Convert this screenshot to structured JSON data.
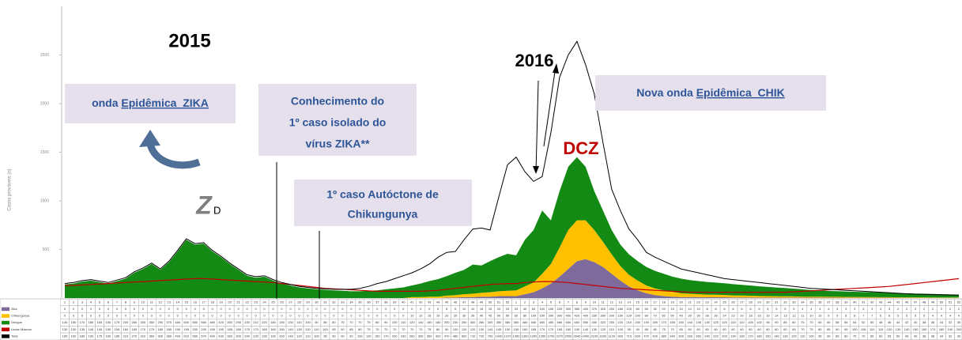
{
  "chart_data": {
    "type": "stacked_area",
    "y_label": "Casos prováveis (n)",
    "ylim": [
      0,
      3000
    ],
    "yticks": [
      500,
      1000,
      1500,
      2000,
      2500
    ],
    "categories": [
      1,
      2,
      3,
      4,
      5,
      6,
      7,
      8,
      9,
      10,
      11,
      12,
      13,
      14,
      15,
      16,
      17,
      18,
      19,
      20,
      21,
      22,
      23,
      24,
      25,
      26,
      27,
      28,
      29,
      30,
      31,
      32,
      33,
      34,
      35,
      36,
      37,
      38,
      39,
      40,
      41,
      42,
      43,
      44,
      45,
      46,
      47,
      48,
      49,
      50,
      51,
      52,
      1,
      2,
      3,
      4,
      5,
      6,
      7,
      8,
      9,
      10,
      11,
      12,
      13,
      14,
      15,
      16,
      17,
      18,
      19,
      20,
      21,
      22,
      23,
      24,
      25,
      26,
      27,
      28,
      29,
      30,
      31,
      32,
      33,
      34,
      35,
      36,
      37,
      38,
      39,
      40,
      41,
      42,
      43,
      44,
      45,
      46,
      47,
      48,
      49,
      50,
      51,
      52
    ],
    "series": [
      {
        "name": "Zika",
        "color": "#7f6a9c",
        "kind": "area",
        "values": [
          0,
          0,
          0,
          0,
          0,
          0,
          0,
          0,
          0,
          0,
          0,
          0,
          0,
          0,
          0,
          0,
          0,
          0,
          0,
          0,
          0,
          0,
          0,
          0,
          0,
          0,
          0,
          0,
          0,
          0,
          0,
          0,
          0,
          0,
          0,
          0,
          0,
          0,
          0,
          0,
          0,
          0,
          0,
          0,
          5,
          5,
          10,
          10,
          15,
          15,
          20,
          20,
          20,
          40,
          60,
          100,
          150,
          220,
          300,
          380,
          400,
          370,
          320,
          250,
          180,
          120,
          80,
          50,
          30,
          20,
          15,
          10,
          10,
          10,
          8,
          8,
          8,
          6,
          6,
          6,
          5,
          5,
          5,
          5,
          5,
          4,
          4,
          4,
          4,
          4,
          3,
          3,
          3,
          3,
          3,
          3,
          2,
          2,
          2,
          2,
          2,
          2,
          2,
          2
        ]
      },
      {
        "name": "Chikungunya",
        "color": "#ffc000",
        "kind": "area",
        "values": [
          0,
          0,
          0,
          0,
          0,
          0,
          0,
          0,
          0,
          0,
          0,
          0,
          0,
          0,
          0,
          0,
          0,
          0,
          0,
          0,
          0,
          0,
          0,
          0,
          0,
          0,
          0,
          0,
          0,
          0,
          0,
          0,
          0,
          0,
          0,
          0,
          0,
          0,
          0,
          0,
          10,
          10,
          15,
          15,
          20,
          25,
          30,
          35,
          40,
          45,
          50,
          55,
          60,
          80,
          100,
          150,
          200,
          300,
          400,
          420,
          400,
          330,
          260,
          200,
          150,
          120,
          100,
          80,
          70,
          60,
          50,
          40,
          35,
          30,
          28,
          26,
          24,
          22,
          20,
          18,
          16,
          15,
          14,
          13,
          12,
          11,
          10,
          10,
          9,
          9,
          8,
          8,
          7,
          7,
          6,
          6,
          5,
          5,
          5,
          5,
          4,
          4,
          4,
          4
        ]
      },
      {
        "name": "Dengue",
        "color": "#138a13",
        "kind": "area",
        "values": [
          140,
          150,
          170,
          180,
          165,
          150,
          175,
          200,
          260,
          300,
          350,
          290,
          370,
          480,
          600,
          550,
          560,
          480,
          420,
          350,
          290,
          230,
          210,
          220,
          180,
          150,
          130,
          110,
          100,
          90,
          85,
          80,
          75,
          70,
          70,
          75,
          80,
          90,
          100,
          110,
          120,
          140,
          160,
          180,
          200,
          230,
          250,
          300,
          280,
          320,
          350,
          380,
          360,
          480,
          540,
          650,
          450,
          580,
          650,
          650,
          550,
          400,
          320,
          250,
          220,
          210,
          200,
          190,
          180,
          170,
          155,
          150,
          140,
          135,
          130,
          125,
          120,
          115,
          110,
          105,
          100,
          95,
          90,
          85,
          80,
          75,
          70,
          65,
          60,
          58,
          56,
          54,
          52,
          50,
          48,
          46,
          44,
          42,
          40,
          38,
          36,
          34,
          32,
          30
        ]
      },
      {
        "name": "Limiar Máximo",
        "color": "#c00000",
        "kind": "line",
        "values": [
          130,
          130,
          135,
          140,
          145,
          150,
          155,
          160,
          165,
          170,
          175,
          180,
          185,
          190,
          195,
          200,
          200,
          195,
          190,
          185,
          180,
          175,
          170,
          165,
          160,
          150,
          140,
          130,
          120,
          110,
          100,
          95,
          90,
          85,
          80,
          75,
          70,
          70,
          70,
          70,
          70,
          70,
          75,
          80,
          90,
          100,
          110,
          120,
          130,
          140,
          145,
          150,
          150,
          160,
          165,
          170,
          170,
          165,
          160,
          150,
          140,
          130,
          120,
          110,
          100,
          95,
          90,
          85,
          80,
          75,
          70,
          65,
          60,
          60,
          60,
          60,
          60,
          60,
          60,
          60,
          60,
          60,
          60,
          60,
          65,
          70,
          75,
          80,
          85,
          90,
          95,
          100,
          105,
          110,
          115,
          120,
          130,
          140,
          150,
          160,
          170,
          180,
          190,
          200
        ]
      },
      {
        "name": "Total",
        "color": "#000000",
        "kind": "line",
        "values": [
          150,
          160,
          180,
          190,
          175,
          160,
          185,
          210,
          270,
          310,
          360,
          300,
          380,
          490,
          610,
          560,
          570,
          490,
          430,
          360,
          300,
          240,
          220,
          230,
          190,
          160,
          140,
          120,
          110,
          100,
          95,
          90,
          90,
          90,
          100,
          120,
          150,
          170,
          200,
          230,
          260,
          300,
          350,
          420,
          470,
          480,
          600,
          710,
          720,
          700,
          1040,
          1370,
          1450,
          1300,
          1200,
          1250,
          1700,
          2270,
          2500,
          2640,
          2400,
          2100,
          1600,
          1120,
          900,
          710,
          600,
          470,
          420,
          380,
          340,
          300,
          280,
          260,
          240,
          220,
          200,
          190,
          180,
          170,
          160,
          150,
          140,
          130,
          120,
          110,
          100,
          95,
          90,
          85,
          80,
          75,
          70,
          65,
          60,
          55,
          50,
          45,
          40,
          38,
          36,
          34,
          32,
          30
        ]
      }
    ],
    "labels": {
      "y2015": "2015",
      "y2016": "2016",
      "dcz": "DCZ",
      "z": "Z",
      "d": "D"
    },
    "annotations": {
      "zika_wave": [
        "onda ",
        "Epidêmica_ZIKA"
      ],
      "first_case": [
        "Conhecimento do",
        "1º caso isolado do",
        "vírus ZIKA**"
      ],
      "chik_case": [
        "1º caso Autóctone de",
        "Chikungunya"
      ],
      "chik_wave": [
        "Nova onda ",
        "Epidêmica_CHIK"
      ]
    }
  }
}
